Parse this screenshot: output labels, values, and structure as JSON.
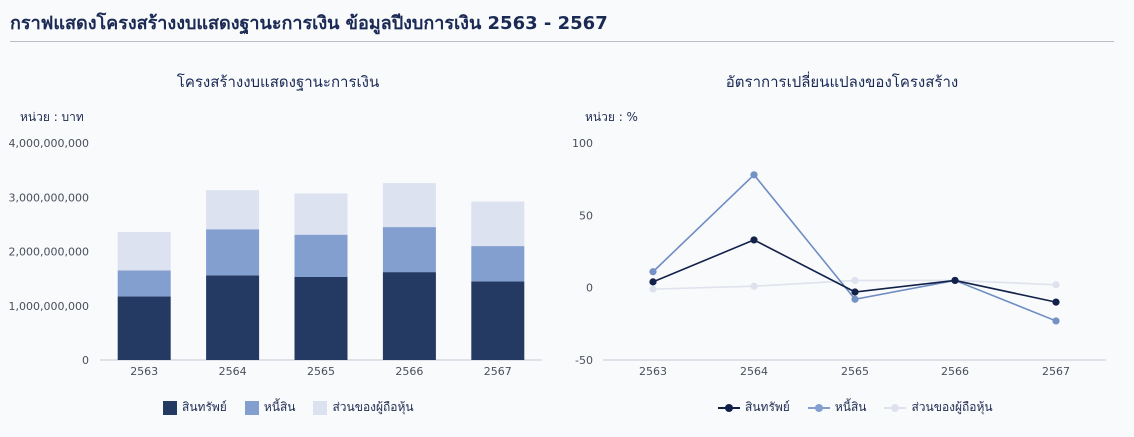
{
  "page": {
    "title": "กราฟแสดงโครงสร้างงบแสดงฐานะการเงิน ข้อมูลปีงบการเงิน 2563 - 2567"
  },
  "colors": {
    "assets": "#253a63",
    "liabilities": "#829fcf",
    "equity": "#dce2ef"
  },
  "chart_data": [
    {
      "type": "bar",
      "stacked": true,
      "title": "โครงสร้างงบแสดงฐานะการเงิน",
      "unit_label": "หน่วย : บาท",
      "categories": [
        "2563",
        "2564",
        "2565",
        "2566",
        "2567"
      ],
      "series": [
        {
          "name": "สินทรัพย์",
          "values": [
            1170000000,
            1560000000,
            1530000000,
            1620000000,
            1450000000
          ]
        },
        {
          "name": "หนี้สิน",
          "values": [
            480000000,
            850000000,
            780000000,
            830000000,
            650000000
          ]
        },
        {
          "name": "ส่วนของผู้ถือหุ้น",
          "values": [
            710000000,
            720000000,
            760000000,
            810000000,
            820000000
          ]
        }
      ],
      "y_ticks": [
        "0",
        "1,000,000,000",
        "2,000,000,000",
        "3,000,000,000",
        "4,000,000,000"
      ],
      "ylim": [
        0,
        4000000000
      ],
      "grid": false,
      "legend": "bottom"
    },
    {
      "type": "line",
      "title": "อัตราการเปลี่ยนแปลงของโครงสร้าง",
      "unit_label": "หน่วย : %",
      "categories": [
        "2563",
        "2564",
        "2565",
        "2566",
        "2567"
      ],
      "series": [
        {
          "name": "สินทรัพย์",
          "values": [
            4,
            33,
            -3,
            5,
            -10
          ]
        },
        {
          "name": "หนี้สิน",
          "values": [
            11,
            78,
            -8,
            5,
            -23
          ]
        },
        {
          "name": "ส่วนของผู้ถือหุ้น",
          "values": [
            -1,
            1,
            5,
            5,
            2
          ]
        }
      ],
      "y_ticks": [
        "100",
        "50",
        "0",
        "-50"
      ],
      "ylim": [
        -50,
        100
      ],
      "grid": false,
      "legend": "bottom"
    }
  ]
}
